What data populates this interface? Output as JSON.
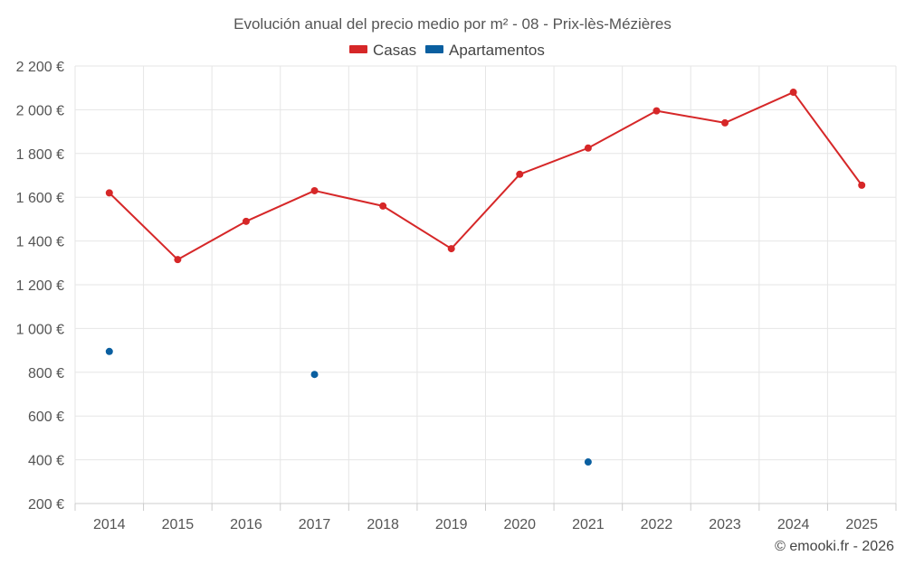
{
  "chart_data": {
    "type": "line",
    "title": "Evolución anual del precio medio por m² - 08 - Prix-lès-Mézières",
    "xlabel": "",
    "ylabel": "",
    "categories": [
      "2014",
      "2015",
      "2016",
      "2017",
      "2018",
      "2019",
      "2020",
      "2021",
      "2022",
      "2023",
      "2024",
      "2025"
    ],
    "ylim": [
      200,
      2200
    ],
    "yticks": [
      200,
      400,
      600,
      800,
      1000,
      1200,
      1400,
      1600,
      1800,
      2000,
      2200
    ],
    "ytick_labels": [
      "200 €",
      "400 €",
      "600 €",
      "800 €",
      "1 000 €",
      "1 200 €",
      "1 400 €",
      "1 600 €",
      "1 800 €",
      "2 000 €",
      "2 200 €"
    ],
    "grid": true,
    "legend_position": "top-center",
    "series": [
      {
        "name": "Casas",
        "color": "#d62728",
        "connected": true,
        "values": [
          1620,
          1315,
          1490,
          1630,
          1560,
          1365,
          1705,
          1825,
          1995,
          1940,
          2080,
          1655
        ]
      },
      {
        "name": "Apartamentos",
        "color": "#0a5fa0",
        "connected": false,
        "values": [
          895,
          null,
          null,
          790,
          null,
          null,
          null,
          390,
          null,
          null,
          null,
          null
        ]
      }
    ]
  },
  "credit": "© emooki.fr - 2026"
}
